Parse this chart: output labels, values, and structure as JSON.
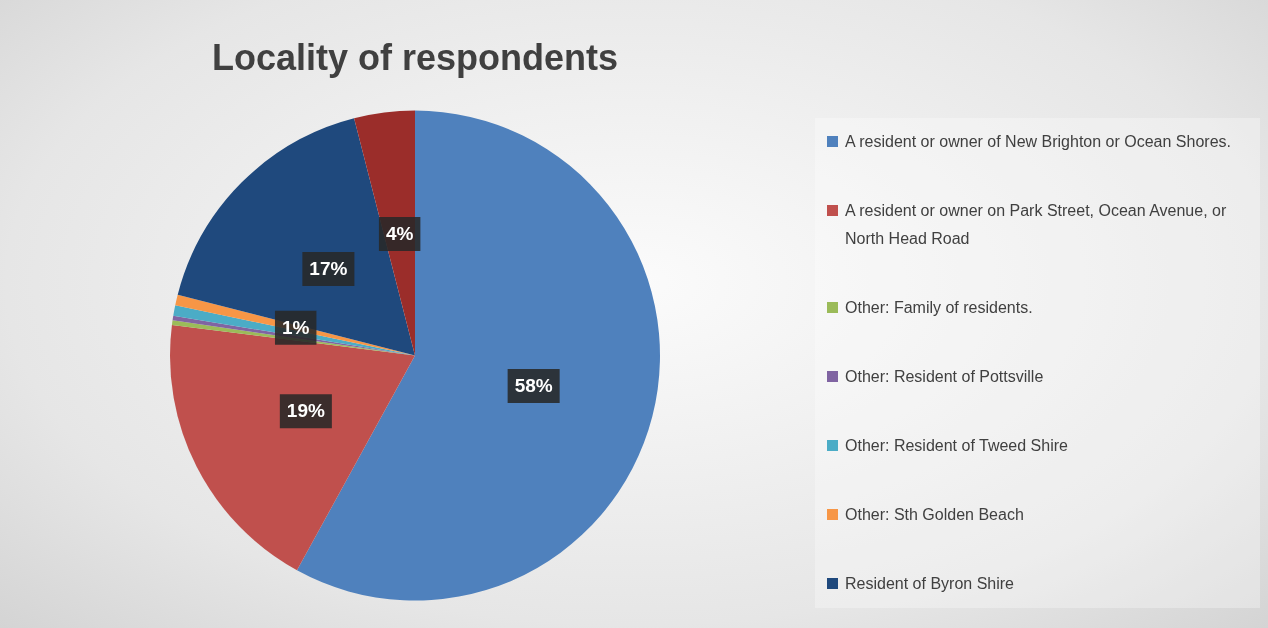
{
  "chart_data": {
    "type": "pie",
    "title": "Locality of respondents",
    "categories": [
      "A resident or owner of New Brighton or Ocean Shores.",
      "A resident or owner on Park Street, Ocean Avenue, or North Head Road",
      "Other: Family of residents.",
      "Other: Resident of Pottsville",
      "Other: Resident of Tweed Shire",
      "Other: Sth Golden Beach",
      "Resident of Byron Shire",
      null
    ],
    "values": [
      58,
      19,
      0.3,
      0.3,
      0.7,
      0.7,
      17,
      4
    ],
    "colors": [
      "#4f81bd",
      "#c0504d",
      "#9bbb59",
      "#8064a2",
      "#4bacc6",
      "#f79646",
      "#1f497d",
      "#9b2d2a"
    ],
    "value_labels": [
      "58%",
      "19%",
      null,
      null,
      null,
      "1%",
      "17%",
      "4%"
    ],
    "legend": "right"
  }
}
